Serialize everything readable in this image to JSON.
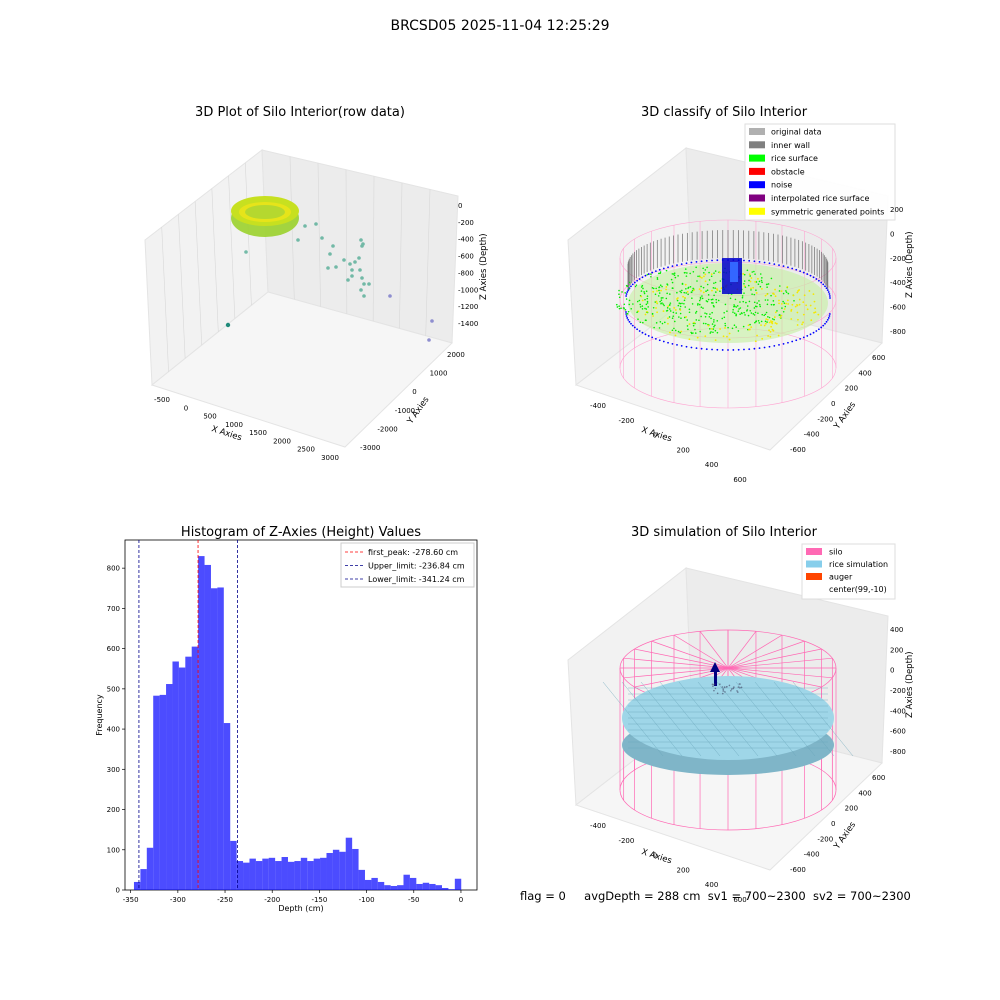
{
  "figure": {
    "suptitle": "BRCSD05 2025-11-04 12:25:29",
    "info": {
      "flag": "flag = 0",
      "avg_depth": "avgDepth = 288 cm",
      "sv1": "sv1 = 700~2300",
      "sv2": "sv2 = 700~2300"
    }
  },
  "panels": {
    "raw": {
      "title": "3D Plot of Silo Interior(row data)",
      "x_label": "X Axies",
      "y_label": "Y Axies",
      "z_label": "Z Axies (Depth)",
      "x_ticks": [
        "-500",
        "0",
        "500",
        "1000",
        "1500",
        "2000",
        "2500",
        "3000"
      ],
      "y_ticks": [
        "2000",
        "1000",
        "0",
        "-1000",
        "-2000",
        "-3000"
      ],
      "z_ticks": [
        "0",
        "-200",
        "-400",
        "-600",
        "-800",
        "-1000",
        "-1200",
        "-1400"
      ]
    },
    "classify": {
      "title": "3D classify of Silo Interior",
      "x_label": "X Axies",
      "y_label": "Y Axies",
      "z_label": "Z Axies (Depth)",
      "x_ticks": [
        "-400",
        "-200",
        "0",
        "200",
        "400",
        "600"
      ],
      "y_ticks": [
        "600",
        "400",
        "200",
        "0",
        "-200",
        "-400",
        "-600"
      ],
      "z_ticks": [
        "200",
        "0",
        "-200",
        "-400",
        "-600",
        "-800"
      ],
      "legend": [
        {
          "label": "original data",
          "color": "#b0b0b0"
        },
        {
          "label": "inner wall",
          "color": "#808080"
        },
        {
          "label": "rice surface",
          "color": "#00ff00"
        },
        {
          "label": "obstacle",
          "color": "#ff0000"
        },
        {
          "label": "noise",
          "color": "#0000ff"
        },
        {
          "label": "interpolated rice surface",
          "color": "#800080"
        },
        {
          "label": "symmetric generated points",
          "color": "#ffff00"
        }
      ]
    },
    "simulation": {
      "title": "3D simulation of Silo Interior",
      "x_label": "X Axies",
      "y_label": "Y Axies",
      "z_label": "Z Axies (Depth)",
      "x_ticks": [
        "-400",
        "-200",
        "0",
        "200",
        "400",
        "600"
      ],
      "y_ticks": [
        "600",
        "400",
        "200",
        "0",
        "-200",
        "-400",
        "-600"
      ],
      "z_ticks": [
        "400",
        "200",
        "0",
        "-200",
        "-400",
        "-600",
        "-800"
      ],
      "legend": [
        {
          "label": "silo",
          "color": "#ff69b4"
        },
        {
          "label": "rice simulation",
          "color": "#87ceeb"
        },
        {
          "label": "auger",
          "color": "#ff4500"
        },
        {
          "label": "center(99,-10)",
          "color": ""
        }
      ]
    }
  },
  "chart_data": {
    "type": "bar",
    "title": "Histogram of Z-Axies (Height) Values",
    "xlabel": "Depth (cm)",
    "ylabel": "Frequency",
    "xlim": [
      -356,
      17
    ],
    "ylim": [
      0,
      870
    ],
    "x_ticks": [
      -350,
      -300,
      -250,
      -200,
      -150,
      -100,
      -50,
      0
    ],
    "y_ticks": [
      0,
      100,
      200,
      300,
      400,
      500,
      600,
      700,
      800
    ],
    "bar_color": "#0000ff",
    "bin_width": 6.8,
    "bin_start": -346.5,
    "values": [
      20,
      52,
      105,
      483,
      485,
      512,
      568,
      553,
      580,
      605,
      830,
      808,
      750,
      752,
      415,
      122,
      72,
      68,
      78,
      72,
      78,
      80,
      72,
      82,
      70,
      72,
      80,
      72,
      78,
      80,
      92,
      100,
      95,
      130,
      102,
      50,
      25,
      30,
      20,
      12,
      10,
      12,
      38,
      30,
      15,
      18,
      15,
      12,
      5,
      2,
      28
    ],
    "lines": [
      {
        "label": "first_peak: -278.60 cm",
        "x": -278.6,
        "color": "#ff0000"
      },
      {
        "label": "Upper_limit: -236.84 cm",
        "x": -236.84,
        "color": "#00008b"
      },
      {
        "label": "Lower_limit: -341.24 cm",
        "x": -341.24,
        "color": "#00008b"
      }
    ],
    "legend_position": "top-right"
  }
}
